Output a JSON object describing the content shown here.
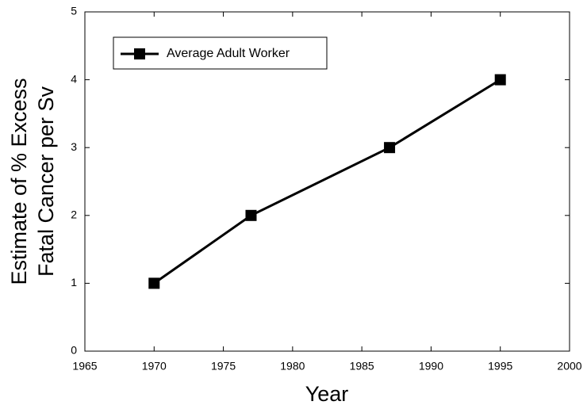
{
  "chart_data": {
    "type": "line",
    "xlabel": "Year",
    "ylabel": [
      "Estimate of % Excess",
      "Fatal Cancer per Sv"
    ],
    "x": [
      1970,
      1977,
      1987,
      1995
    ],
    "series": [
      {
        "name": "Average Adult Worker",
        "color": "#000000",
        "values": [
          1,
          2,
          3,
          4
        ]
      }
    ],
    "xlim": [
      1965,
      2000
    ],
    "xticks": [
      1965,
      1970,
      1975,
      1980,
      1985,
      1990,
      1995,
      2000
    ],
    "ylim": [
      0,
      5
    ],
    "yticks": [
      0,
      1,
      2,
      3,
      4,
      5
    ],
    "grid": false,
    "legend": "upper left"
  }
}
